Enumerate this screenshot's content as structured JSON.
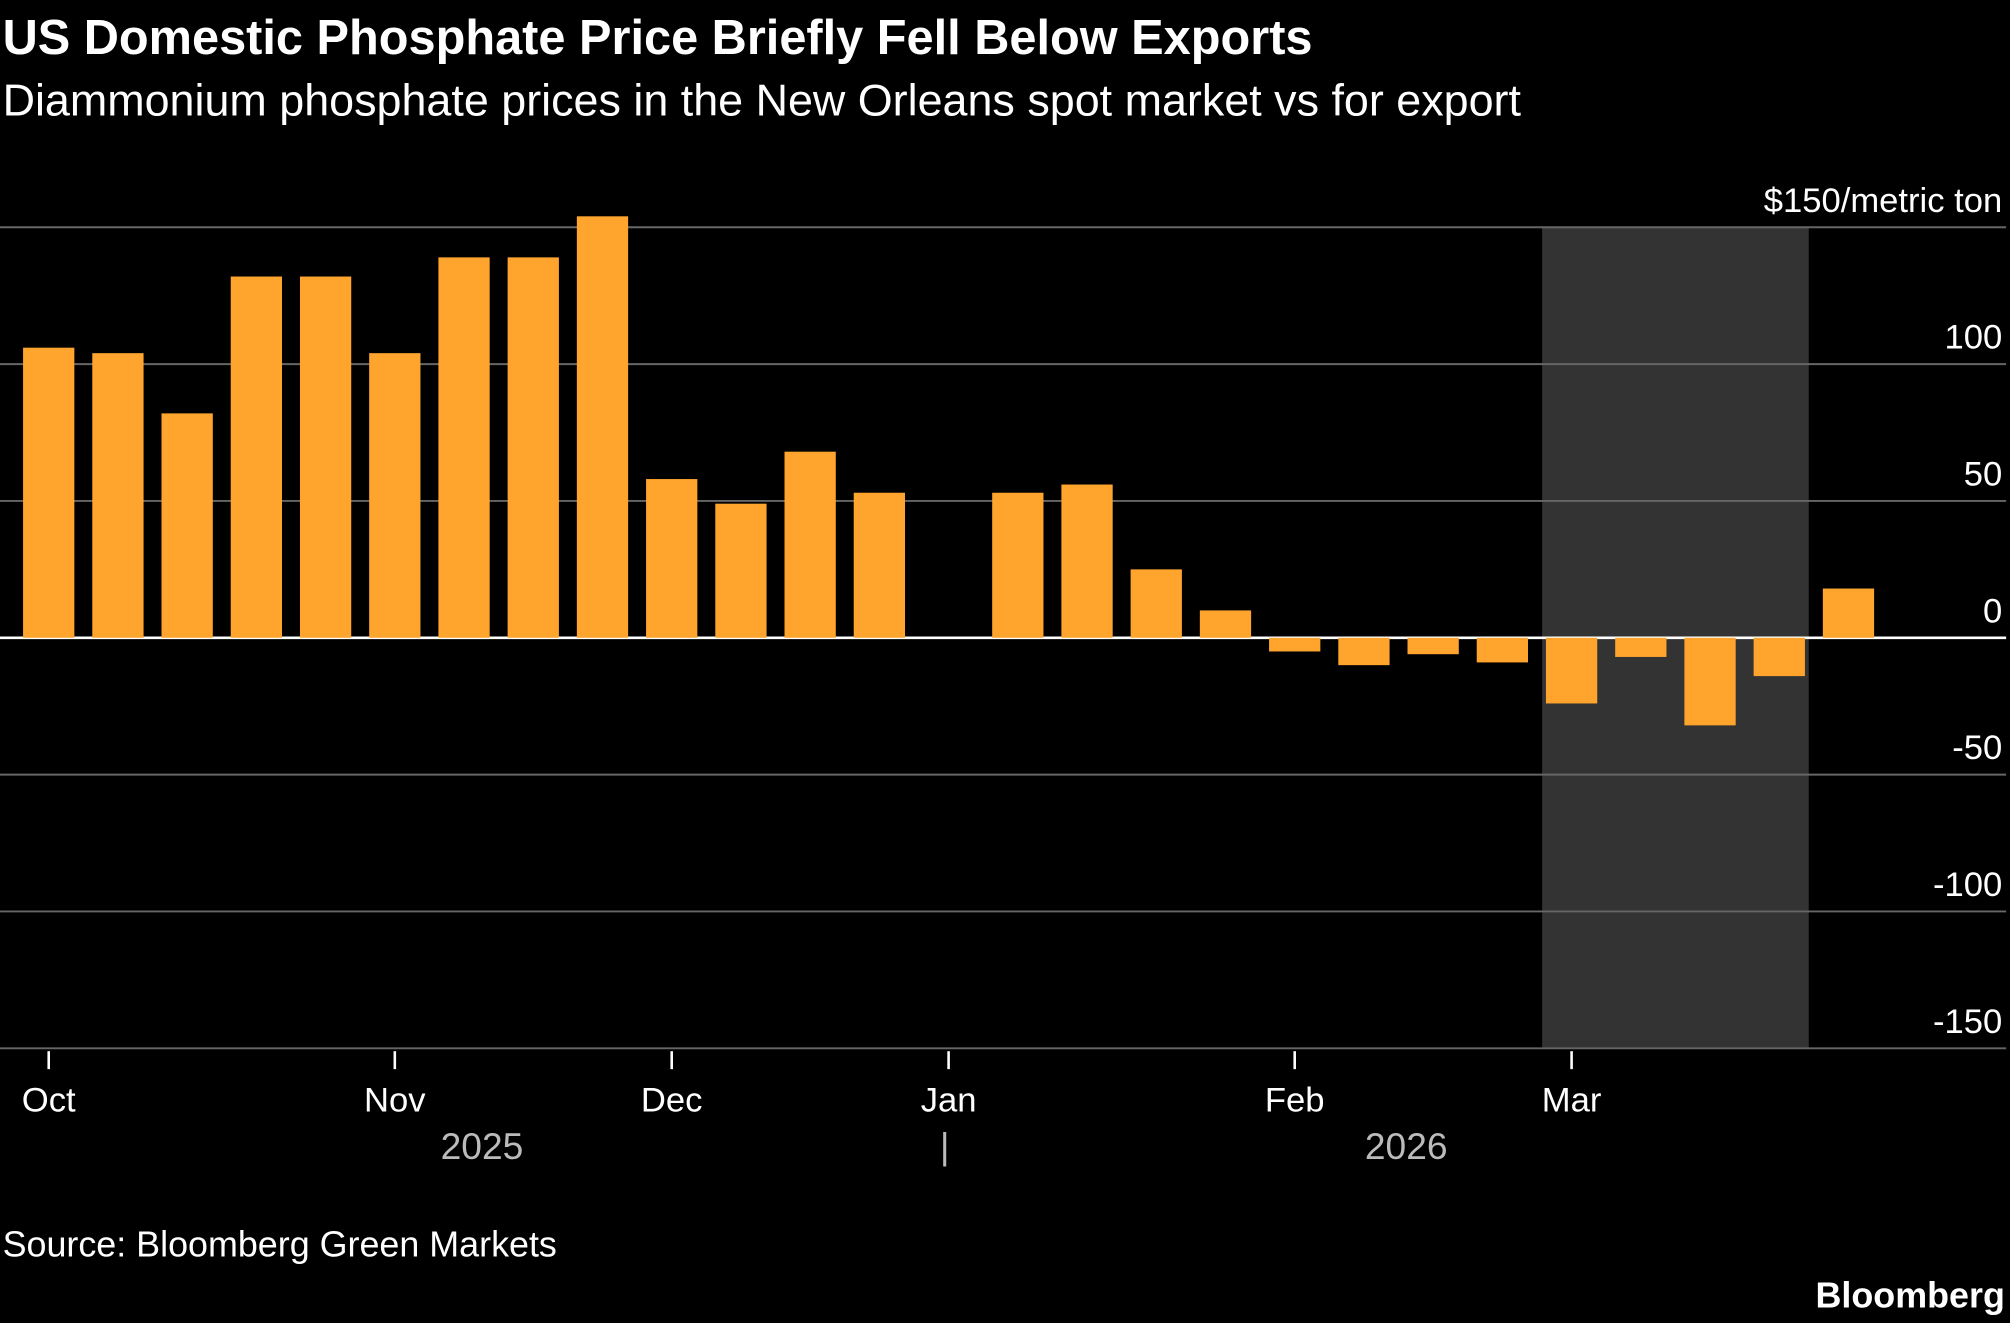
{
  "chart_data": {
    "type": "bar",
    "title": "US Domestic Phosphate Price Briefly Fell Below Exports",
    "subtitle": "Diammonium phosphate prices in the New Orleans spot market vs for export",
    "ylabel_unit": "$150/metric ton",
    "ylim": [
      -150,
      150
    ],
    "yticks": [
      150,
      100,
      50,
      0,
      -50,
      -100,
      -150
    ],
    "ytick_labels": [
      "$150/metric ton",
      "100",
      "50",
      "0",
      "-50",
      "-100",
      "-150"
    ],
    "grid": true,
    "x": [
      "2025-10-02",
      "2025-10-09",
      "2025-10-16",
      "2025-10-23",
      "2025-10-30",
      "2025-11-06",
      "2025-11-13",
      "2025-11-20",
      "2025-11-27",
      "2025-12-04",
      "2025-12-11",
      "2025-12-18",
      "2025-12-25",
      "2026-01-01",
      "2026-01-08",
      "2026-01-15",
      "2026-01-22",
      "2026-01-29",
      "2026-02-05",
      "2026-02-12",
      "2026-02-19",
      "2026-02-26",
      "2026-03-05",
      "2026-03-12",
      "2026-03-19",
      "2026-03-26",
      "2026-04-02"
    ],
    "values": [
      106,
      104,
      82,
      132,
      132,
      104,
      139,
      139,
      154,
      58,
      49,
      68,
      53,
      null,
      53,
      56,
      25,
      10,
      -5,
      -10,
      -6,
      -9,
      -24,
      -7,
      -32,
      -14,
      18
    ],
    "bar_color": "#ffa52e",
    "shaded_range": [
      "2026-03-05",
      "2026-03-26"
    ],
    "shade_color": "#333333",
    "month_ticks": [
      {
        "label": "Oct",
        "date": "2025-10-02"
      },
      {
        "label": "Nov",
        "date": "2025-11-06"
      },
      {
        "label": "Dec",
        "date": "2025-12-04"
      },
      {
        "label": "Jan",
        "date": "2026-01-01"
      },
      {
        "label": "Feb",
        "date": "2026-02-05"
      },
      {
        "label": "Mar",
        "date": "2026-03-05"
      }
    ],
    "years": [
      "2025",
      "2026"
    ],
    "year_separator": "|"
  },
  "footer": {
    "source": "Source: Bloomberg Green Markets",
    "brand": "Bloomberg"
  }
}
